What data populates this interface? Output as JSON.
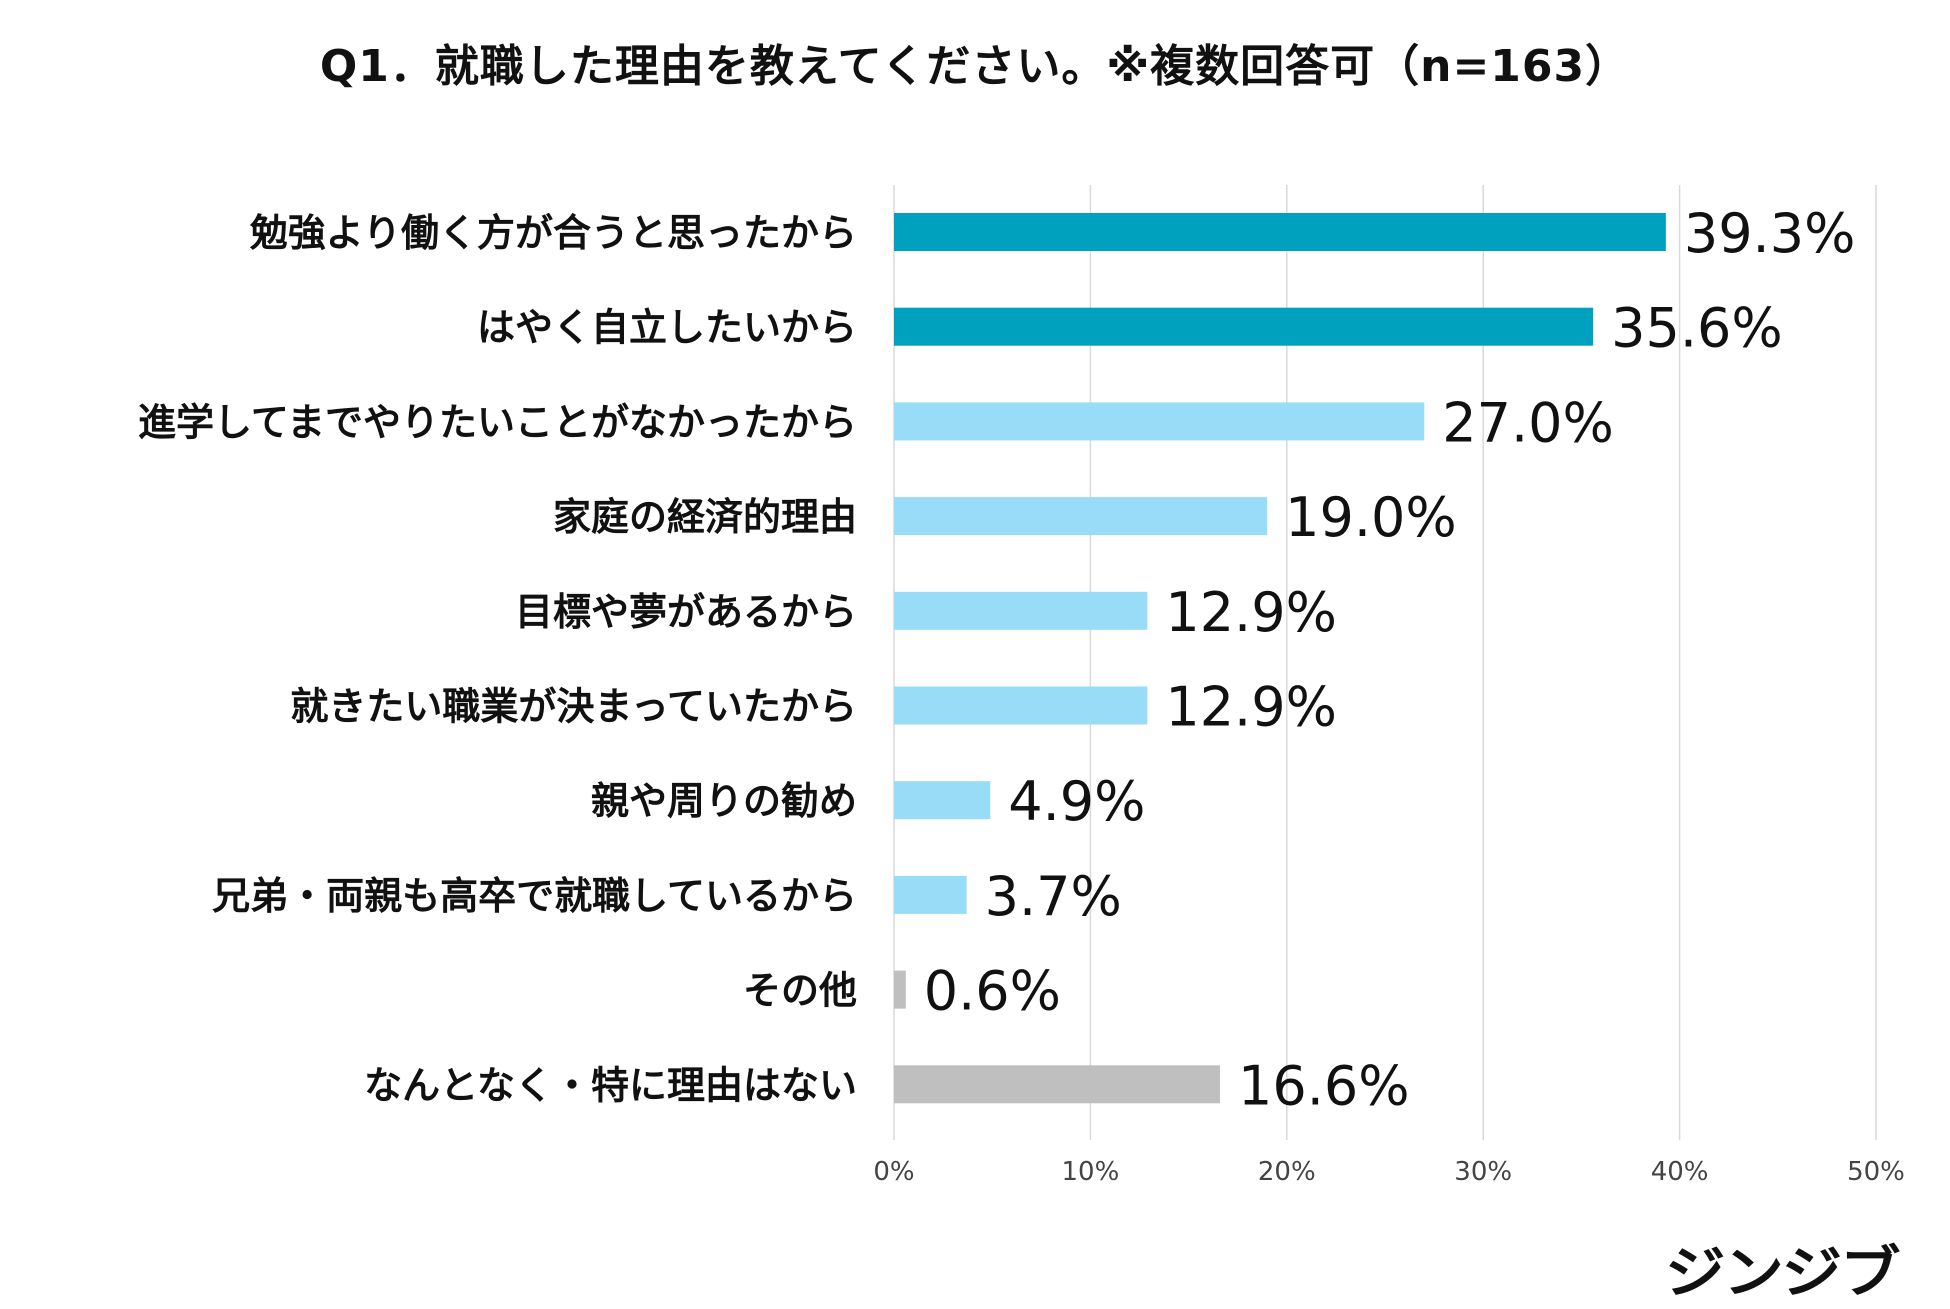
{
  "chart_data": {
    "type": "bar",
    "orientation": "horizontal",
    "title": "Q1．就職した理由を教えてください。※複数回答可（n=163）",
    "categories": [
      "勉強より働く方が合うと思ったから",
      "はやく自立したいから",
      "進学してまでやりたいことがなかったから",
      "家庭の経済的理由",
      "目標や夢があるから",
      "就きたい職業が決まっていたから",
      "親や周りの勧め",
      "兄弟・両親も高卒で就職しているから",
      "その他",
      "なんとなく・特に理由はない"
    ],
    "values": [
      39.3,
      35.6,
      27.0,
      19.0,
      12.9,
      12.9,
      4.9,
      3.7,
      0.6,
      16.6
    ],
    "value_labels": [
      "39.3%",
      "35.6%",
      "27.0%",
      "19.0%",
      "12.9%",
      "12.9%",
      "4.9%",
      "3.7%",
      "0.6%",
      "16.6%"
    ],
    "bar_colors": [
      "#00a0bf",
      "#00a0bf",
      "#99dcf7",
      "#99dcf7",
      "#99dcf7",
      "#99dcf7",
      "#99dcf7",
      "#99dcf7",
      "#bfbfbf",
      "#bfbfbf"
    ],
    "xlim": [
      0,
      50
    ],
    "xticks": [
      0,
      10,
      20,
      30,
      40,
      50
    ],
    "xtick_labels": [
      "0%",
      "10%",
      "20%",
      "30%",
      "40%",
      "50%"
    ],
    "grid": "vertical",
    "grid_color": "#d9d9d9",
    "legend": "none"
  },
  "brand": {
    "logo_text": "ジンジブ"
  }
}
